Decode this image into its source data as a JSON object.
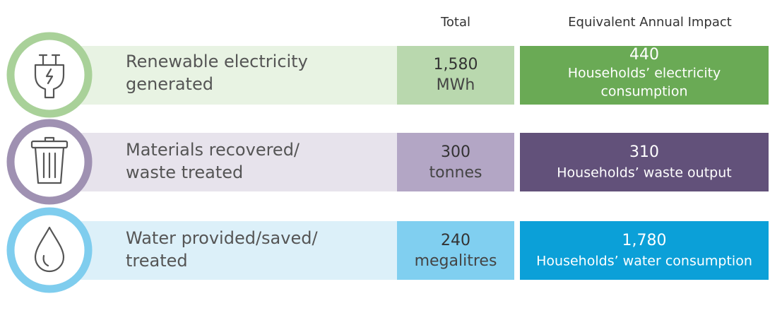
{
  "header": {
    "total": "Total",
    "impact": "Equivalent Annual Impact"
  },
  "rows": [
    {
      "label": [
        "Renewable electricity",
        "generated"
      ],
      "total": {
        "value": "1,580",
        "unit": "MWh"
      },
      "impact": {
        "value": "440",
        "description": [
          "Households’ electricity",
          "consumption"
        ]
      }
    },
    {
      "label": [
        "Materials recovered/",
        "waste treated"
      ],
      "total": {
        "value": "300",
        "unit": "tonnes"
      },
      "impact": {
        "value": "310",
        "description": [
          "Households’ waste output"
        ]
      }
    },
    {
      "label": [
        "Water provided/saved/",
        "treated"
      ],
      "total": {
        "value": "240",
        "unit": "megalitres"
      },
      "impact": {
        "value": "1,780",
        "description": [
          "Households’ water consumption"
        ]
      }
    }
  ]
}
